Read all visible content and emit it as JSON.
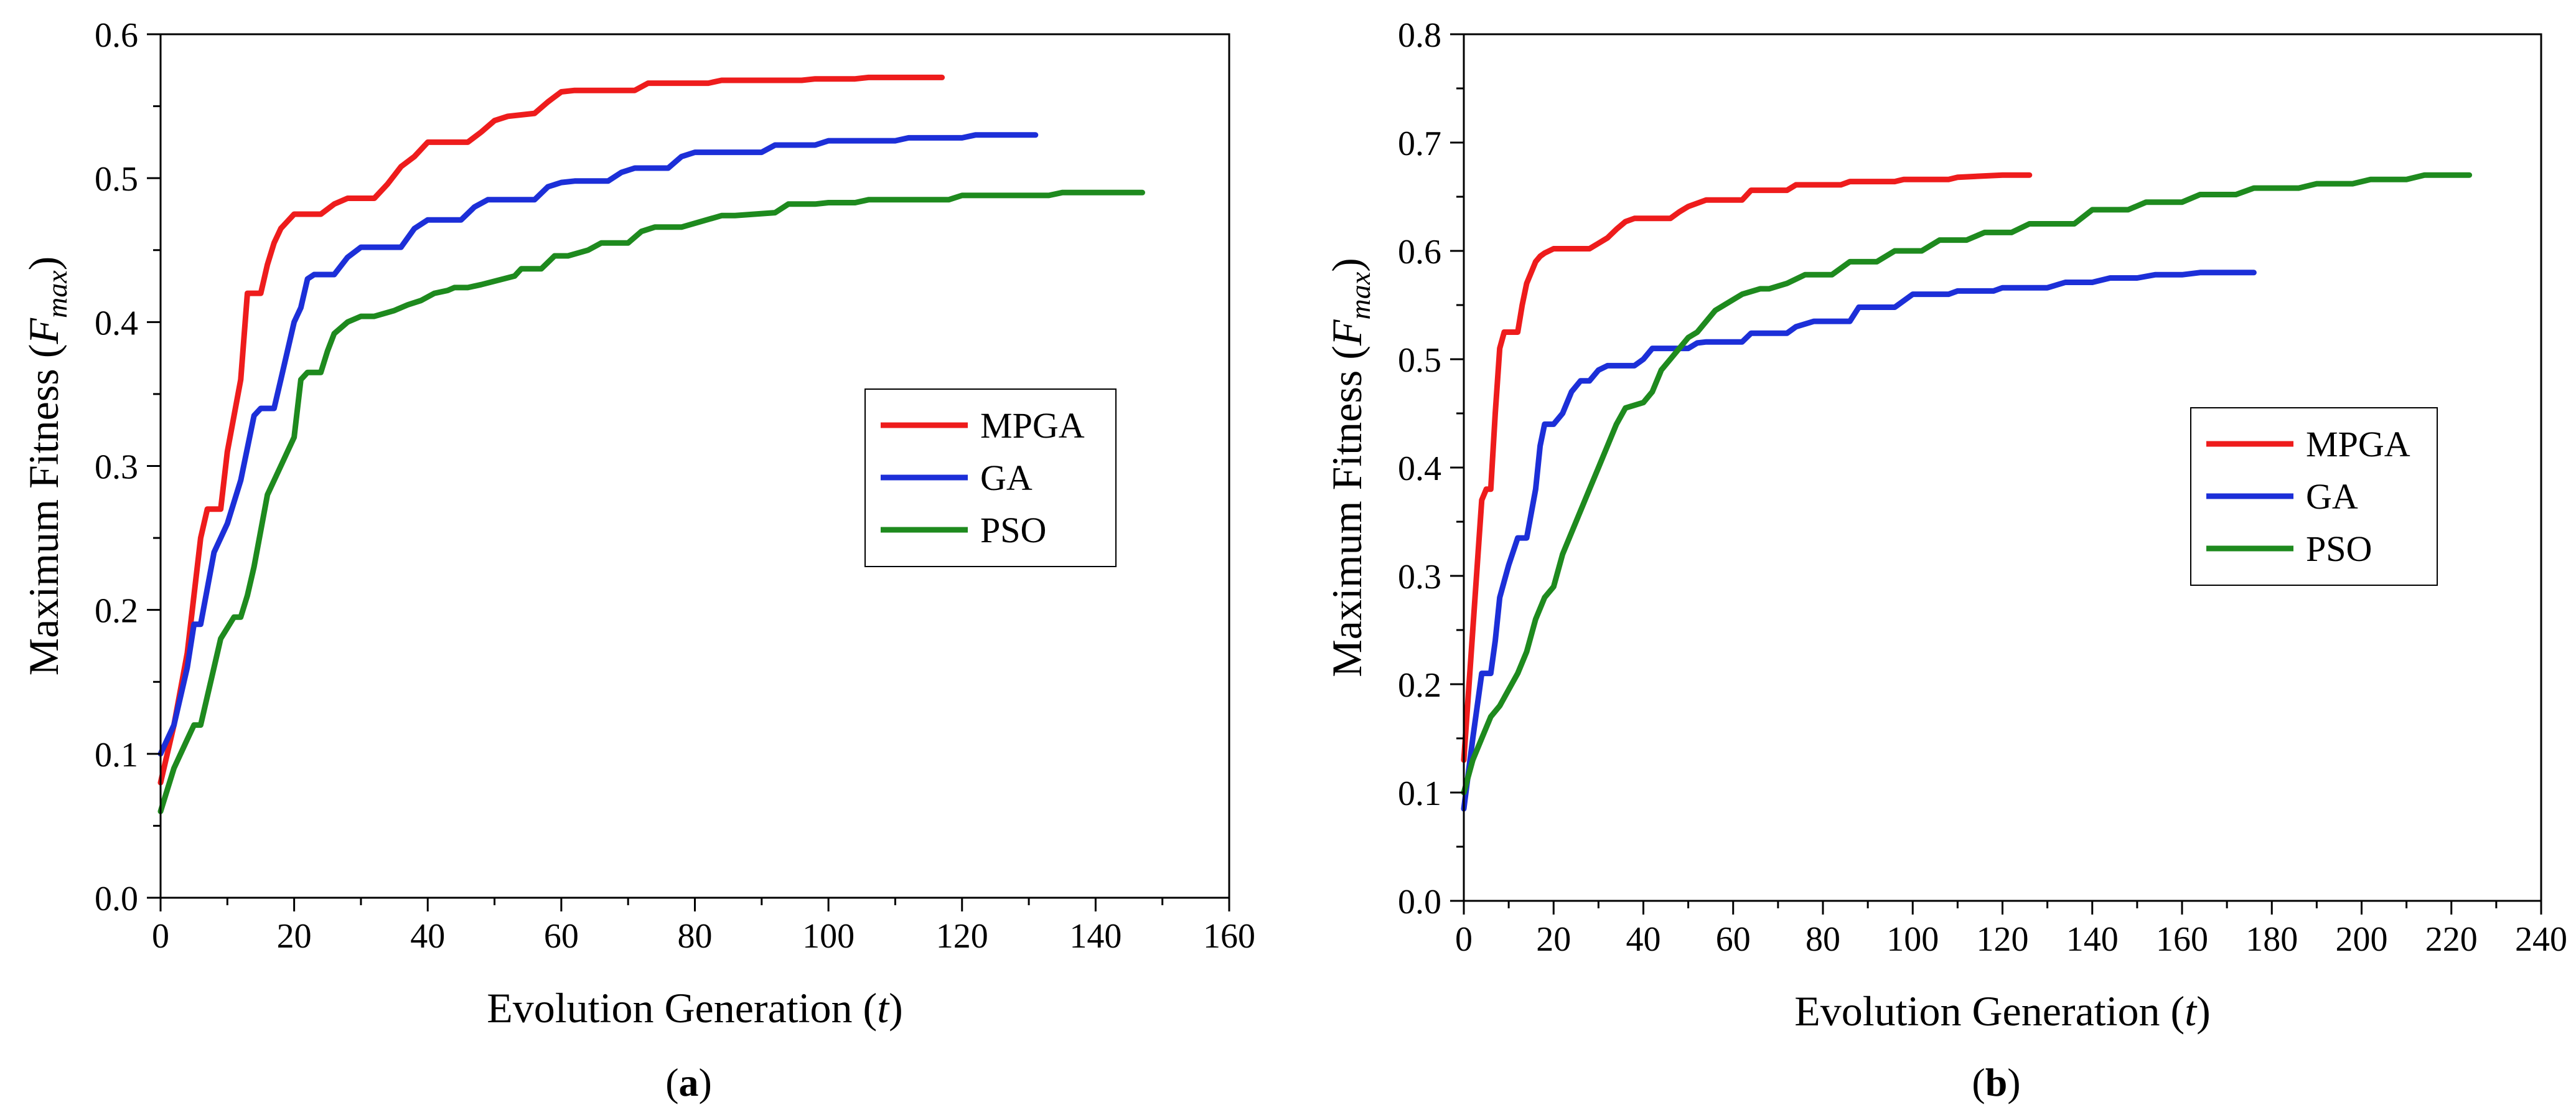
{
  "chart_data": [
    {
      "type": "line",
      "panel_label": "a",
      "xlabel": "Evolution Generation",
      "xlabel_var": "t",
      "ylabel": "Maximum Fitness",
      "ylabel_var": "F",
      "ylabel_sub": "max",
      "xlim": [
        0,
        160
      ],
      "ylim": [
        0,
        0.6
      ],
      "xticks": [
        0,
        20,
        40,
        60,
        80,
        100,
        120,
        140,
        160
      ],
      "yticks": [
        "0.0",
        "0.1",
        "0.2",
        "0.3",
        "0.4",
        "0.5",
        "0.6"
      ],
      "legend_position": "middle-right",
      "series": [
        {
          "name": "MPGA",
          "color": "#ee1c1c",
          "x": [
            0,
            2,
            4,
            6,
            7,
            9,
            10,
            12,
            13,
            14,
            15,
            16,
            17,
            18,
            19,
            20,
            21,
            24,
            26,
            28,
            32,
            34,
            36,
            38,
            40,
            46,
            48,
            50,
            52,
            56,
            58,
            60,
            62,
            71,
            73,
            82,
            84,
            96,
            98,
            104,
            106,
            117
          ],
          "y": [
            0.08,
            0.12,
            0.17,
            0.25,
            0.27,
            0.27,
            0.31,
            0.36,
            0.42,
            0.42,
            0.42,
            0.44,
            0.455,
            0.465,
            0.47,
            0.475,
            0.475,
            0.475,
            0.482,
            0.486,
            0.486,
            0.496,
            0.508,
            0.515,
            0.525,
            0.525,
            0.532,
            0.54,
            0.543,
            0.545,
            0.553,
            0.56,
            0.561,
            0.561,
            0.566,
            0.566,
            0.568,
            0.568,
            0.569,
            0.569,
            0.57,
            0.57
          ]
        },
        {
          "name": "GA",
          "color": "#1c2fd8",
          "x": [
            0,
            2,
            4,
            5,
            6,
            8,
            10,
            12,
            14,
            15,
            17,
            18,
            20,
            21,
            22,
            23,
            26,
            28,
            30,
            32,
            36,
            38,
            40,
            45,
            47,
            49,
            51,
            56,
            58,
            60,
            62,
            67,
            69,
            71,
            76,
            78,
            80,
            82,
            90,
            92,
            98,
            100,
            110,
            112,
            120,
            122,
            131
          ],
          "y": [
            0.1,
            0.12,
            0.16,
            0.19,
            0.19,
            0.24,
            0.26,
            0.29,
            0.335,
            0.34,
            0.34,
            0.36,
            0.4,
            0.41,
            0.43,
            0.433,
            0.433,
            0.445,
            0.452,
            0.452,
            0.452,
            0.465,
            0.471,
            0.471,
            0.48,
            0.485,
            0.485,
            0.485,
            0.494,
            0.497,
            0.498,
            0.498,
            0.504,
            0.507,
            0.507,
            0.515,
            0.518,
            0.518,
            0.518,
            0.523,
            0.523,
            0.526,
            0.526,
            0.528,
            0.528,
            0.53,
            0.53
          ]
        },
        {
          "name": "PSO",
          "color": "#1e8a1e",
          "x": [
            0,
            2,
            4,
            5,
            6,
            8,
            9,
            11,
            12,
            13,
            14,
            16,
            18,
            19,
            20,
            21,
            22,
            24,
            25,
            26,
            28,
            30,
            32,
            35,
            37,
            39,
            41,
            43,
            44,
            46,
            48,
            53,
            54,
            57,
            59,
            61,
            64,
            66,
            70,
            72,
            74,
            78,
            84,
            86,
            92,
            94,
            98,
            100,
            104,
            106,
            118,
            120,
            133,
            135,
            147
          ],
          "y": [
            0.06,
            0.09,
            0.11,
            0.12,
            0.12,
            0.16,
            0.18,
            0.195,
            0.195,
            0.21,
            0.23,
            0.28,
            0.3,
            0.31,
            0.32,
            0.36,
            0.365,
            0.365,
            0.38,
            0.392,
            0.4,
            0.404,
            0.404,
            0.408,
            0.412,
            0.415,
            0.42,
            0.422,
            0.424,
            0.424,
            0.426,
            0.432,
            0.437,
            0.437,
            0.446,
            0.446,
            0.45,
            0.455,
            0.455,
            0.463,
            0.466,
            0.466,
            0.474,
            0.474,
            0.476,
            0.482,
            0.482,
            0.483,
            0.483,
            0.485,
            0.485,
            0.488,
            0.488,
            0.49,
            0.49
          ]
        }
      ]
    },
    {
      "type": "line",
      "panel_label": "b",
      "xlabel": "Evolution Generation",
      "xlabel_var": "t",
      "ylabel": "Maximum Fitness",
      "ylabel_var": "F",
      "ylabel_sub": "max",
      "xlim": [
        0,
        240
      ],
      "ylim": [
        0,
        0.8
      ],
      "xticks": [
        0,
        20,
        40,
        60,
        80,
        100,
        120,
        140,
        160,
        180,
        200,
        220,
        240
      ],
      "yticks": [
        "0.0",
        "0.1",
        "0.2",
        "0.3",
        "0.4",
        "0.5",
        "0.6",
        "0.7",
        "0.8"
      ],
      "legend_position": "middle-right",
      "series": [
        {
          "name": "MPGA",
          "color": "#ee1c1c",
          "x": [
            0,
            2,
            4,
            5,
            6,
            7,
            8,
            9,
            10,
            11,
            12,
            13,
            14,
            15,
            16,
            17,
            18,
            20,
            22,
            28,
            30,
            32,
            34,
            36,
            38,
            46,
            48,
            50,
            54,
            62,
            64,
            72,
            74,
            84,
            86,
            96,
            98,
            108,
            110,
            120,
            126
          ],
          "y": [
            0.13,
            0.25,
            0.37,
            0.38,
            0.38,
            0.45,
            0.51,
            0.525,
            0.525,
            0.525,
            0.525,
            0.55,
            0.57,
            0.58,
            0.59,
            0.595,
            0.598,
            0.602,
            0.602,
            0.602,
            0.607,
            0.612,
            0.62,
            0.627,
            0.63,
            0.63,
            0.636,
            0.641,
            0.647,
            0.647,
            0.656,
            0.656,
            0.661,
            0.661,
            0.664,
            0.664,
            0.666,
            0.666,
            0.668,
            0.67,
            0.67
          ]
        },
        {
          "name": "GA",
          "color": "#1c2fd8",
          "x": [
            0,
            2,
            4,
            6,
            7,
            8,
            10,
            12,
            14,
            16,
            17,
            18,
            19,
            20,
            22,
            24,
            26,
            28,
            30,
            32,
            38,
            40,
            42,
            50,
            52,
            54,
            62,
            64,
            72,
            74,
            78,
            82,
            86,
            88,
            94,
            96,
            100,
            102,
            108,
            110,
            118,
            120,
            130,
            134,
            140,
            144,
            150,
            154,
            160,
            164,
            176
          ],
          "y": [
            0.085,
            0.15,
            0.21,
            0.21,
            0.24,
            0.28,
            0.31,
            0.335,
            0.335,
            0.38,
            0.42,
            0.44,
            0.44,
            0.44,
            0.45,
            0.47,
            0.48,
            0.48,
            0.49,
            0.494,
            0.494,
            0.5,
            0.51,
            0.51,
            0.515,
            0.516,
            0.516,
            0.524,
            0.524,
            0.53,
            0.535,
            0.535,
            0.535,
            0.548,
            0.548,
            0.548,
            0.56,
            0.56,
            0.56,
            0.563,
            0.563,
            0.566,
            0.566,
            0.571,
            0.571,
            0.575,
            0.575,
            0.578,
            0.578,
            0.58,
            0.58
          ]
        },
        {
          "name": "PSO",
          "color": "#1e8a1e",
          "x": [
            0,
            2,
            4,
            6,
            8,
            10,
            12,
            14,
            16,
            18,
            20,
            22,
            24,
            26,
            28,
            30,
            32,
            34,
            36,
            40,
            42,
            44,
            46,
            48,
            50,
            52,
            54,
            56,
            58,
            62,
            66,
            68,
            72,
            76,
            82,
            86,
            92,
            96,
            102,
            106,
            112,
            116,
            122,
            126,
            136,
            140,
            148,
            152,
            160,
            164,
            172,
            176,
            186,
            190,
            198,
            202,
            210,
            214,
            224
          ],
          "y": [
            0.1,
            0.13,
            0.15,
            0.17,
            0.18,
            0.195,
            0.21,
            0.23,
            0.26,
            0.28,
            0.29,
            0.32,
            0.34,
            0.36,
            0.38,
            0.4,
            0.42,
            0.44,
            0.455,
            0.46,
            0.47,
            0.49,
            0.5,
            0.51,
            0.52,
            0.525,
            0.535,
            0.545,
            0.55,
            0.56,
            0.565,
            0.565,
            0.57,
            0.578,
            0.578,
            0.59,
            0.59,
            0.6,
            0.6,
            0.61,
            0.61,
            0.617,
            0.617,
            0.625,
            0.625,
            0.638,
            0.638,
            0.645,
            0.645,
            0.652,
            0.652,
            0.658,
            0.658,
            0.662,
            0.662,
            0.666,
            0.666,
            0.67,
            0.67
          ]
        }
      ]
    }
  ]
}
